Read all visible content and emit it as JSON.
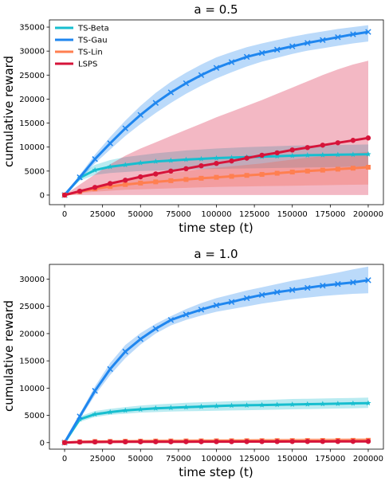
{
  "chart_data": [
    {
      "type": "line",
      "title": "a = 0.5",
      "xlabel": "time step (t)",
      "ylabel": "cumulative reward",
      "xlim": [
        -10000,
        210000
      ],
      "ylim": [
        -2000,
        36500
      ],
      "xticks": [
        0,
        25000,
        50000,
        75000,
        100000,
        125000,
        150000,
        175000,
        200000
      ],
      "yticks": [
        0,
        5000,
        10000,
        15000,
        20000,
        25000,
        30000,
        35000
      ],
      "grid": false,
      "legend": "top-left",
      "x": [
        0,
        10000,
        20000,
        30000,
        40000,
        50000,
        60000,
        70000,
        80000,
        90000,
        100000,
        110000,
        120000,
        130000,
        140000,
        150000,
        160000,
        170000,
        180000,
        190000,
        200000
      ],
      "series": [
        {
          "name": "TS-Beta",
          "color": "#17becf",
          "marker": "star",
          "values": [
            0,
            3600,
            5200,
            5900,
            6300,
            6700,
            7000,
            7200,
            7400,
            7550,
            7700,
            7800,
            7900,
            8000,
            8100,
            8200,
            8300,
            8350,
            8400,
            8450,
            8500
          ],
          "lower": [
            0,
            3000,
            4200,
            4600,
            4800,
            5000,
            5100,
            5200,
            5300,
            5400,
            5450,
            5500,
            5550,
            5600,
            5650,
            5700,
            5750,
            5800,
            5850,
            5900,
            5950
          ],
          "upper": [
            0,
            4200,
            6300,
            7300,
            7900,
            8300,
            8700,
            9000,
            9300,
            9500,
            9700,
            9850,
            10000,
            10100,
            10200,
            10300,
            10350,
            10400,
            10450,
            10500,
            10550
          ]
        },
        {
          "name": "TS-Gau",
          "color": "#1f86ef",
          "marker": "x",
          "values": [
            0,
            3700,
            7500,
            10800,
            13900,
            16700,
            19200,
            21400,
            23300,
            25000,
            26500,
            27700,
            28800,
            29600,
            30300,
            31000,
            31700,
            32300,
            32900,
            33500,
            34000
          ],
          "lower": [
            0,
            3200,
            6600,
            9500,
            12300,
            14800,
            17100,
            19200,
            21100,
            22800,
            24300,
            25600,
            26800,
            27800,
            28600,
            29400,
            30100,
            30600,
            31100,
            31600,
            32000
          ],
          "upper": [
            0,
            4200,
            8400,
            12100,
            15500,
            18600,
            21300,
            23600,
            25500,
            27200,
            28700,
            29800,
            30800,
            31600,
            32300,
            33000,
            33600,
            34100,
            34600,
            35000,
            35400
          ]
        },
        {
          "name": "TS-Lin",
          "color": "#ff7f50",
          "marker": "square",
          "values": [
            0,
            700,
            1300,
            1800,
            2200,
            2500,
            2750,
            3000,
            3250,
            3500,
            3700,
            3900,
            4100,
            4300,
            4550,
            4800,
            5000,
            5200,
            5400,
            5600,
            5800
          ],
          "lower": [
            0,
            400,
            700,
            900,
            1100,
            1200,
            1300,
            1400,
            1500,
            1600,
            1700,
            1750,
            1800,
            1850,
            1900,
            1950,
            2000,
            2050,
            2100,
            2150,
            2200
          ],
          "upper": [
            0,
            1000,
            1900,
            2700,
            3300,
            3800,
            4200,
            4600,
            5000,
            5400,
            5700,
            6000,
            6300,
            6600,
            7000,
            7400,
            7800,
            8100,
            8400,
            8700,
            9000
          ]
        },
        {
          "name": "LSPS",
          "color": "#d6143a",
          "marker": "circle",
          "values": [
            0,
            800,
            1600,
            2400,
            3100,
            3800,
            4400,
            5000,
            5500,
            6100,
            6600,
            7100,
            7700,
            8300,
            8800,
            9400,
            9900,
            10400,
            10900,
            11400,
            11900
          ],
          "lower": [
            0,
            0,
            0,
            0,
            0,
            0,
            0,
            0,
            0,
            0,
            0,
            0,
            0,
            0,
            0,
            0,
            0,
            0,
            0,
            0,
            0
          ],
          "upper": [
            0,
            2200,
            4300,
            6400,
            8200,
            9700,
            11000,
            12300,
            13600,
            14900,
            16200,
            17400,
            18600,
            19800,
            21100,
            22400,
            23700,
            25000,
            26200,
            27200,
            28000
          ]
        }
      ]
    },
    {
      "type": "line",
      "title": "a = 1.0",
      "xlabel": "time step (t)",
      "ylabel": "cumulative reward",
      "xlim": [
        -10000,
        210000
      ],
      "ylim": [
        -1200,
        32700
      ],
      "xticks": [
        0,
        25000,
        50000,
        75000,
        100000,
        125000,
        150000,
        175000,
        200000
      ],
      "yticks": [
        0,
        5000,
        10000,
        15000,
        20000,
        25000,
        30000
      ],
      "grid": false,
      "x": [
        0,
        10000,
        20000,
        30000,
        40000,
        50000,
        60000,
        70000,
        80000,
        90000,
        100000,
        110000,
        120000,
        130000,
        140000,
        150000,
        160000,
        170000,
        180000,
        190000,
        200000
      ],
      "series": [
        {
          "color": "#17becf",
          "marker": "star",
          "values": [
            0,
            4300,
            5200,
            5600,
            5900,
            6100,
            6300,
            6400,
            6500,
            6600,
            6700,
            6800,
            6850,
            6900,
            6950,
            7000,
            7050,
            7100,
            7150,
            7200,
            7250
          ],
          "lower": [
            0,
            3800,
            4700,
            5100,
            5300,
            5500,
            5600,
            5700,
            5750,
            5800,
            5850,
            5900,
            5950,
            6000,
            6050,
            6100,
            6150,
            6200,
            6250,
            6300,
            6350
          ],
          "upper": [
            0,
            4800,
            5800,
            6200,
            6500,
            6800,
            7000,
            7150,
            7300,
            7400,
            7500,
            7600,
            7700,
            7800,
            7900,
            8000,
            8050,
            8100,
            8150,
            8200,
            8250
          ]
        },
        {
          "color": "#1f86ef",
          "marker": "x",
          "values": [
            0,
            4800,
            9500,
            13500,
            16700,
            19000,
            20900,
            22500,
            23500,
            24400,
            25200,
            25800,
            26500,
            27100,
            27600,
            28000,
            28400,
            28800,
            29100,
            29400,
            29800
          ],
          "lower": [
            0,
            4300,
            8700,
            12400,
            15500,
            18000,
            20000,
            21500,
            22500,
            23300,
            24000,
            24500,
            25000,
            25500,
            25900,
            26300,
            26600,
            26900,
            27100,
            27300,
            27400
          ],
          "upper": [
            0,
            5300,
            10300,
            14600,
            17900,
            20100,
            21800,
            23200,
            24500,
            25600,
            26500,
            27200,
            27900,
            28500,
            29100,
            29700,
            30200,
            30700,
            31200,
            31800,
            32300
          ]
        },
        {
          "color": "#ff7f50",
          "marker": "square",
          "values": [
            0,
            150,
            200,
            220,
            250,
            270,
            290,
            300,
            310,
            320,
            330,
            340,
            350,
            360,
            370,
            380,
            390,
            400,
            410,
            420,
            430
          ],
          "lower": [
            0,
            50,
            50,
            60,
            60,
            70,
            70,
            80,
            80,
            80,
            90,
            90,
            90,
            90,
            100,
            100,
            100,
            100,
            100,
            100,
            100
          ],
          "upper": [
            0,
            250,
            350,
            400,
            450,
            500,
            550,
            600,
            620,
            650,
            670,
            690,
            700,
            720,
            740,
            760,
            780,
            800,
            820,
            840,
            850
          ]
        },
        {
          "color": "#d6143a",
          "marker": "circle",
          "values": [
            0,
            100,
            120,
            130,
            140,
            150,
            155,
            160,
            165,
            170,
            175,
            180,
            185,
            190,
            195,
            200,
            205,
            210,
            215,
            220,
            225
          ],
          "lower": [
            0,
            0,
            0,
            0,
            0,
            0,
            0,
            0,
            0,
            0,
            0,
            0,
            0,
            0,
            0,
            0,
            0,
            0,
            0,
            0,
            0
          ],
          "upper": [
            0,
            250,
            300,
            320,
            340,
            360,
            380,
            400,
            410,
            420,
            430,
            440,
            450,
            460,
            470,
            480,
            490,
            500,
            510,
            520,
            530
          ]
        }
      ]
    }
  ]
}
